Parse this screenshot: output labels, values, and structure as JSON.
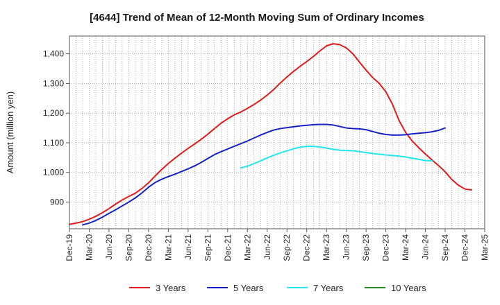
{
  "chart_data": {
    "type": "line",
    "title": "[4644]  Trend of Mean of 12-Month Moving Sum of Ordinary Incomes",
    "xlabel": "",
    "ylabel": "Amount (million yen)",
    "ylim": [
      810,
      1460
    ],
    "yticks": [
      900,
      1000,
      1100,
      1200,
      1300,
      1400
    ],
    "ytick_labels": [
      "900",
      "1,000",
      "1,100",
      "1,200",
      "1,300",
      "1,400"
    ],
    "xtick_labels": [
      "Dec-19",
      "Mar-20",
      "Jun-20",
      "Sep-20",
      "Dec-20",
      "Mar-21",
      "Jun-21",
      "Sep-21",
      "Dec-21",
      "Mar-22",
      "Jun-22",
      "Sep-22",
      "Dec-22",
      "Mar-23",
      "Jun-23",
      "Sep-23",
      "Dec-23",
      "Mar-24",
      "Jun-24",
      "Sep-24",
      "Dec-24",
      "Mar-25"
    ],
    "grid": true,
    "legend_position": "bottom",
    "series": [
      {
        "name": "3 Years",
        "color": "#e31a1c",
        "start_index": 0,
        "values": [
          825,
          829,
          834,
          842,
          852,
          864,
          878,
          893,
          907,
          919,
          930,
          946,
          965,
          988,
          1010,
          1030,
          1048,
          1065,
          1081,
          1096,
          1112,
          1129,
          1148,
          1166,
          1181,
          1194,
          1204,
          1216,
          1229,
          1244,
          1261,
          1280,
          1302,
          1322,
          1341,
          1358,
          1374,
          1391,
          1410,
          1427,
          1434,
          1431,
          1420,
          1400,
          1372,
          1345,
          1320,
          1300,
          1272,
          1230,
          1175,
          1135,
          1106,
          1083,
          1062,
          1042,
          1023,
          1002,
          976,
          957,
          944,
          941
        ]
      },
      {
        "name": "5 Years",
        "color": "#1520c8",
        "start_index": 2,
        "values": [
          823,
          829,
          838,
          849,
          862,
          874,
          887,
          900,
          914,
          931,
          950,
          966,
          977,
          986,
          994,
          1003,
          1012,
          1022,
          1034,
          1047,
          1060,
          1070,
          1079,
          1088,
          1097,
          1106,
          1116,
          1126,
          1135,
          1143,
          1148,
          1151,
          1154,
          1157,
          1159,
          1161,
          1162,
          1162,
          1160,
          1155,
          1150,
          1148,
          1147,
          1144,
          1138,
          1132,
          1128,
          1126,
          1126,
          1127,
          1130,
          1132,
          1134,
          1137,
          1142,
          1150
        ]
      },
      {
        "name": "7 Years",
        "color": "#22e5ee",
        "start_index": 26,
        "values": [
          1015,
          1021,
          1030,
          1039,
          1049,
          1058,
          1066,
          1073,
          1080,
          1085,
          1088,
          1088,
          1086,
          1082,
          1078,
          1075,
          1074,
          1073,
          1070,
          1067,
          1064,
          1061,
          1059,
          1057,
          1055,
          1052,
          1048,
          1044,
          1040,
          1039
        ]
      },
      {
        "name": "10 Years",
        "color": "#228b22",
        "start_index": 0,
        "values": []
      }
    ]
  }
}
